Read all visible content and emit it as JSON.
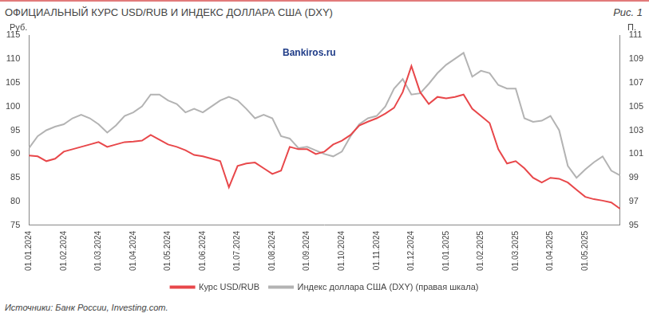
{
  "chart_data": {
    "type": "line",
    "title": "ОФИЦИАЛЬНЫЙ КУРС USD/RUB И ИНДЕКС ДОЛЛАРА США (DXY)",
    "figure_label": "Рис. 1",
    "y_label": "Руб.",
    "y2_label": "П.",
    "source": "Источники: Банк России, Investing.com.",
    "annotations": [
      "Bankiros.ru"
    ],
    "categories": [
      "01.01.2024",
      null,
      null,
      null,
      "01.02.2024",
      null,
      null,
      null,
      "01.03.2024",
      null,
      null,
      null,
      "01.04.2024",
      null,
      null,
      null,
      "01.05.2024",
      null,
      null,
      null,
      "01.06.2024",
      null,
      null,
      null,
      "01.07.2024",
      null,
      null,
      null,
      "01.08.2024",
      null,
      null,
      null,
      "01.09.2024",
      null,
      null,
      null,
      "01.10.2024",
      null,
      null,
      null,
      "01.11.2024",
      null,
      null,
      null,
      "01.12.2024",
      null,
      null,
      null,
      "01.01.2025",
      null,
      null,
      null,
      "01.02.2025",
      null,
      null,
      null,
      "01.03.2025",
      null,
      null,
      null,
      "01.04.2025",
      null,
      null,
      null,
      "01.05.2025",
      null,
      null,
      null,
      null
    ],
    "series": [
      {
        "name": "Курс USD/RUB",
        "color": "#e8474a",
        "axis": "y",
        "values": [
          89.7,
          89.5,
          88.5,
          89.0,
          90.5,
          91.0,
          91.5,
          92.0,
          92.5,
          91.5,
          92.0,
          92.5,
          92.6,
          92.8,
          94.0,
          93.0,
          92.0,
          91.5,
          90.8,
          89.8,
          89.5,
          89.0,
          88.5,
          83.0,
          87.5,
          88.0,
          88.2,
          87.0,
          85.8,
          86.5,
          91.5,
          91.0,
          91.0,
          90.0,
          90.5,
          92.0,
          92.8,
          94.0,
          96.0,
          96.8,
          97.5,
          98.5,
          99.7,
          103.0,
          108.5,
          103.0,
          100.5,
          102.0,
          101.7,
          102.0,
          102.5,
          99.5,
          98.0,
          96.5,
          91.0,
          88.0,
          88.5,
          87.0,
          85.0,
          84.0,
          85.0,
          84.8,
          84.0,
          82.5,
          81.0,
          80.5,
          80.2,
          79.8,
          78.5
        ]
      },
      {
        "name": "Индекс доллара США (DXY) (правая шкала)",
        "color": "#b3b3b3",
        "axis": "y2",
        "values": [
          101.5,
          102.5,
          103.0,
          103.3,
          103.5,
          104.0,
          104.3,
          104.0,
          103.5,
          102.8,
          103.4,
          104.2,
          104.5,
          105.0,
          106.0,
          106.0,
          105.5,
          105.2,
          104.5,
          104.8,
          104.5,
          105.0,
          105.5,
          105.8,
          105.5,
          104.8,
          104.0,
          104.3,
          104.0,
          102.5,
          102.3,
          101.5,
          101.6,
          101.3,
          101.0,
          100.8,
          101.2,
          102.5,
          103.5,
          104.0,
          104.2,
          105.0,
          106.5,
          107.3,
          106.0,
          106.1,
          106.9,
          107.8,
          108.5,
          109.0,
          109.5,
          107.5,
          108.0,
          107.8,
          106.8,
          106.5,
          106.5,
          104.0,
          103.7,
          103.8,
          104.2,
          103.0,
          100.0,
          99.0,
          99.7,
          100.3,
          100.8,
          99.6,
          99.2
        ]
      }
    ],
    "ylim": [
      75,
      115
    ],
    "yticks": [
      75,
      80,
      85,
      90,
      95,
      100,
      105,
      110,
      115
    ],
    "y2lim": [
      95,
      111
    ],
    "y2ticks": [
      95,
      97,
      99,
      101,
      103,
      105,
      107,
      109,
      111
    ],
    "grid": false,
    "legend": "bottom"
  }
}
